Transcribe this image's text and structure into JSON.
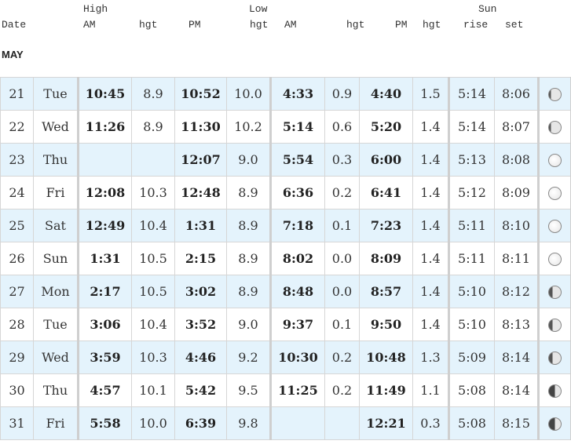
{
  "header": {
    "high": "High",
    "low": "Low",
    "sun": "Sun",
    "date": "Date",
    "high_am": "AM",
    "high_am_hgt": "hgt",
    "high_pm": "PM",
    "high_pm_hgt": "hgt",
    "low_am": "AM",
    "low_am_hgt": "hgt",
    "low_pm": "PM",
    "low_pm_hgt": "hgt",
    "sun_rise": "rise",
    "sun_set": "set"
  },
  "month": "MAY",
  "rows": [
    {
      "date": "21",
      "day": "Tue",
      "high_am": "10:45",
      "high_am_hgt": "8.9",
      "high_pm": "10:52",
      "high_pm_hgt": "10.0",
      "low_am": "4:33",
      "low_am_hgt": "0.9",
      "low_pm": "4:40",
      "low_pm_hgt": "1.5",
      "rise": "5:14",
      "set": "8:06",
      "moon": "waning-gibbous-icon"
    },
    {
      "date": "22",
      "day": "Wed",
      "high_am": "11:26",
      "high_am_hgt": "8.9",
      "high_pm": "11:30",
      "high_pm_hgt": "10.2",
      "low_am": "5:14",
      "low_am_hgt": "0.6",
      "low_pm": "5:20",
      "low_pm_hgt": "1.4",
      "rise": "5:14",
      "set": "8:07",
      "moon": "waning-gibbous-icon"
    },
    {
      "date": "23",
      "day": "Thu",
      "high_am": "",
      "high_am_hgt": "",
      "high_pm": "12:07",
      "high_pm_hgt": "9.0",
      "low_am": "5:54",
      "low_am_hgt": "0.3",
      "low_pm": "6:00",
      "low_pm_hgt": "1.4",
      "rise": "5:13",
      "set": "8:08",
      "moon": "full-moon-icon"
    },
    {
      "date": "24",
      "day": "Fri",
      "high_am": "12:08",
      "high_am_hgt": "10.3",
      "high_pm": "12:48",
      "high_pm_hgt": "8.9",
      "low_am": "6:36",
      "low_am_hgt": "0.2",
      "low_pm": "6:41",
      "low_pm_hgt": "1.4",
      "rise": "5:12",
      "set": "8:09",
      "moon": "full-moon-icon"
    },
    {
      "date": "25",
      "day": "Sat",
      "high_am": "12:49",
      "high_am_hgt": "10.4",
      "high_pm": "1:31",
      "high_pm_hgt": "8.9",
      "low_am": "7:18",
      "low_am_hgt": "0.1",
      "low_pm": "7:23",
      "low_pm_hgt": "1.4",
      "rise": "5:11",
      "set": "8:10",
      "moon": "full-moon-icon"
    },
    {
      "date": "26",
      "day": "Sun",
      "high_am": "1:31",
      "high_am_hgt": "10.5",
      "high_pm": "2:15",
      "high_pm_hgt": "8.9",
      "low_am": "8:02",
      "low_am_hgt": "0.0",
      "low_pm": "8:09",
      "low_pm_hgt": "1.4",
      "rise": "5:11",
      "set": "8:11",
      "moon": "full-moon-icon"
    },
    {
      "date": "27",
      "day": "Mon",
      "high_am": "2:17",
      "high_am_hgt": "10.5",
      "high_pm": "3:02",
      "high_pm_hgt": "8.9",
      "low_am": "8:48",
      "low_am_hgt": "0.0",
      "low_pm": "8:57",
      "low_pm_hgt": "1.4",
      "rise": "5:10",
      "set": "8:12",
      "moon": "waxing-gibbous-icon"
    },
    {
      "date": "28",
      "day": "Tue",
      "high_am": "3:06",
      "high_am_hgt": "10.4",
      "high_pm": "3:52",
      "high_pm_hgt": "9.0",
      "low_am": "9:37",
      "low_am_hgt": "0.1",
      "low_pm": "9:50",
      "low_pm_hgt": "1.4",
      "rise": "5:10",
      "set": "8:13",
      "moon": "waxing-gibbous-icon"
    },
    {
      "date": "29",
      "day": "Wed",
      "high_am": "3:59",
      "high_am_hgt": "10.3",
      "high_pm": "4:46",
      "high_pm_hgt": "9.2",
      "low_am": "10:30",
      "low_am_hgt": "0.2",
      "low_pm": "10:48",
      "low_pm_hgt": "1.3",
      "rise": "5:09",
      "set": "8:14",
      "moon": "gibbous-icon"
    },
    {
      "date": "30",
      "day": "Thu",
      "high_am": "4:57",
      "high_am_hgt": "10.1",
      "high_pm": "5:42",
      "high_pm_hgt": "9.5",
      "low_am": "11:25",
      "low_am_hgt": "0.2",
      "low_pm": "11:49",
      "low_pm_hgt": "1.1",
      "rise": "5:08",
      "set": "8:14",
      "moon": "half-moon-icon"
    },
    {
      "date": "31",
      "day": "Fri",
      "high_am": "5:58",
      "high_am_hgt": "10.0",
      "high_pm": "6:39",
      "high_pm_hgt": "9.8",
      "low_am": "",
      "low_am_hgt": "",
      "low_pm": "12:21",
      "low_pm_hgt": "0.3",
      "rise": "5:08",
      "set": "8:15",
      "moon": "half-moon-icon"
    }
  ]
}
